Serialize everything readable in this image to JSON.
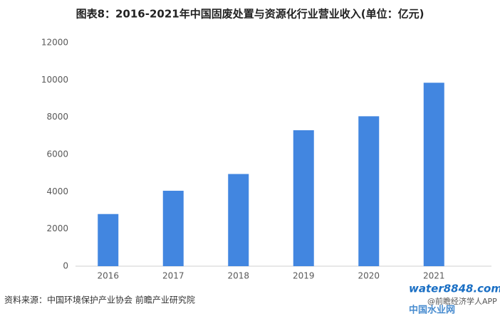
{
  "chart_data": {
    "type": "bar",
    "title": "图表8：2016-2021年中国固废处置与资源化行业营业收入(单位：亿元)",
    "categories": [
      "2016",
      "2017",
      "2018",
      "2019",
      "2020",
      "2021"
    ],
    "values": [
      2800,
      4050,
      4950,
      7300,
      8050,
      9850
    ],
    "color": "#4286e0",
    "ylim": [
      0,
      12000
    ],
    "yticks": [
      0,
      2000,
      4000,
      6000,
      8000,
      10000,
      12000
    ],
    "grid": false,
    "source": "资料来源：中国环境保护产业协会 前瞻产业研究院"
  },
  "logo": {
    "domain": "water8848.com",
    "name": "中国水业网",
    "credit": "@前瞻经济学人APP"
  }
}
